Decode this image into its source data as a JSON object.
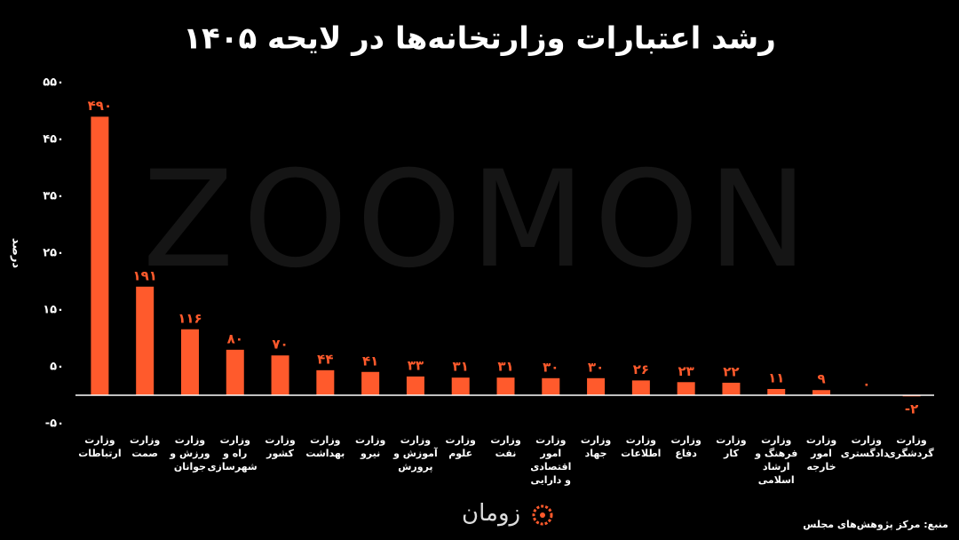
{
  "chart_data": {
    "type": "bar",
    "title": "رشد اعتبارات وزارتخانه‌ها در لایحه ۱۴۰۵",
    "y_label": "درصد",
    "categories": [
      "وزارت ارتباطات",
      "وزارت صمت",
      "وزارت ورزش و جوانان",
      "وزارت راه و شهرسازی",
      "وزارت کشور",
      "وزارت بهداشت",
      "وزارت نیرو",
      "وزارت آموزش و پرورش",
      "وزارت علوم",
      "وزارت نفت",
      "وزارت امور اقتصادی و دارایی",
      "وزارت جهاد",
      "وزارت اطلاعات",
      "وزارت دفاع",
      "وزارت کار",
      "وزارت فرهنگ و ارشاد اسلامی",
      "وزارت امور خارجه",
      "وزارت دادگستری",
      "وزارت گردشگری"
    ],
    "values": [
      490,
      191,
      116,
      80,
      70,
      44,
      41,
      33,
      31,
      31,
      30,
      30,
      26,
      23,
      22,
      11,
      9,
      0,
      -2
    ],
    "value_labels": [
      "۴۹۰",
      "۱۹۱",
      "۱۱۶",
      "۸۰",
      "۷۰",
      "۴۴",
      "۴۱",
      "۳۳",
      "۳۱",
      "۳۱",
      "۳۰",
      "۳۰",
      "۲۶",
      "۲۳",
      "۲۲",
      "۱۱",
      "۹",
      "۰",
      "-۲"
    ],
    "color": "#ff5a2c",
    "ylim": [
      -50,
      550
    ],
    "yticks": [
      {
        "value": -50,
        "label": "-۵۰"
      },
      {
        "value": 50,
        "label": "۵۰"
      },
      {
        "value": 150,
        "label": "۱۵۰"
      },
      {
        "value": 250,
        "label": "۲۵۰"
      },
      {
        "value": 350,
        "label": "۳۵۰"
      },
      {
        "value": 450,
        "label": "۴۵۰"
      },
      {
        "value": 550,
        "label": "۵۵۰"
      }
    ],
    "grid": false,
    "watermark": "ZOOMON",
    "source": "منبع: مرکز پژوهش‌های مجلس",
    "logo": "زومان"
  }
}
